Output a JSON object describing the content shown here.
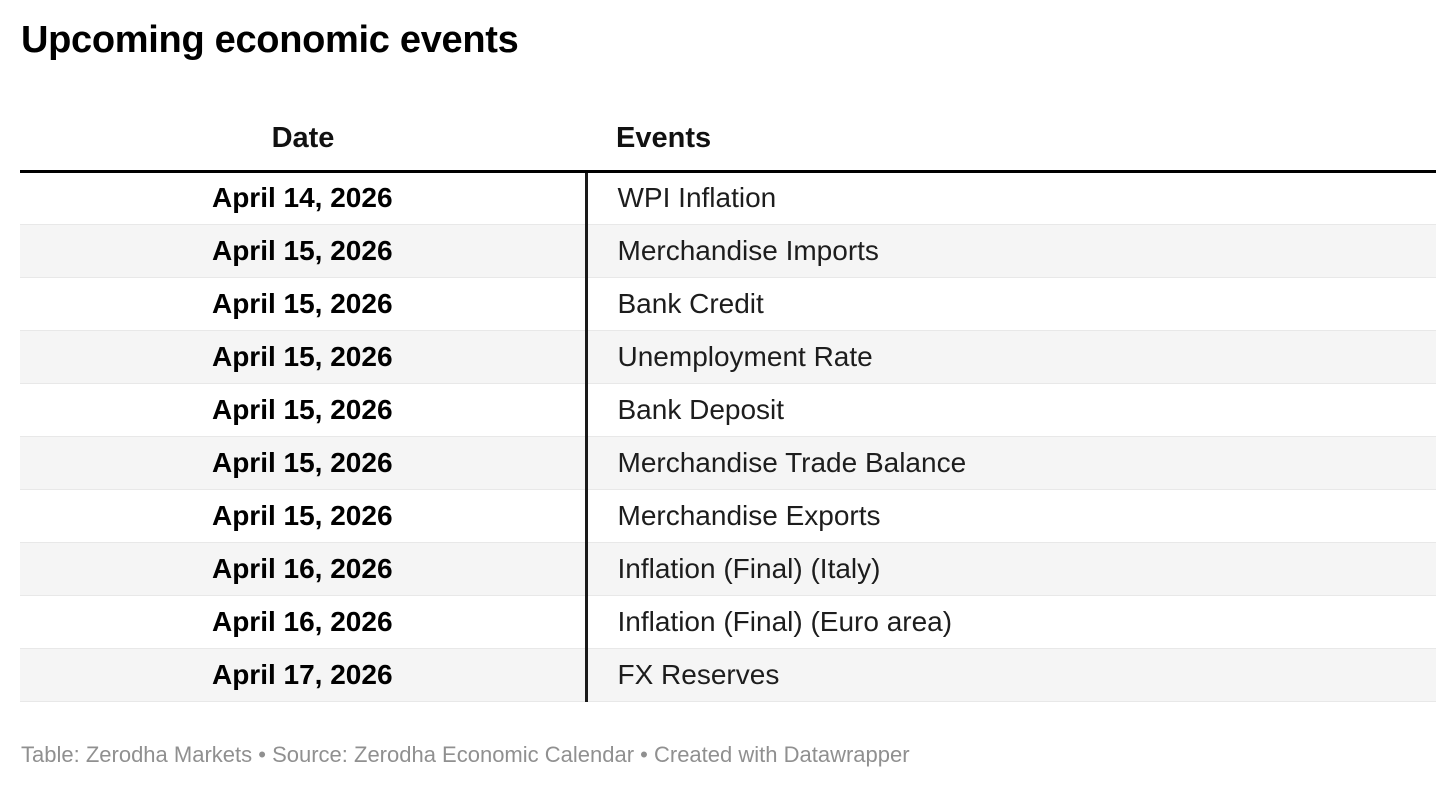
{
  "chart_data": {
    "type": "table",
    "title": "Upcoming economic events",
    "columns": [
      "Date",
      "Events"
    ],
    "rows": [
      {
        "date": "April 14, 2026",
        "event": "WPI Inflation"
      },
      {
        "date": "April 15, 2026",
        "event": "Merchandise Imports"
      },
      {
        "date": "April 15, 2026",
        "event": "Bank Credit"
      },
      {
        "date": "April 15, 2026",
        "event": "Unemployment Rate"
      },
      {
        "date": "April 15, 2026",
        "event": "Bank Deposit"
      },
      {
        "date": "April 15, 2026",
        "event": "Merchandise Trade Balance"
      },
      {
        "date": "April 15, 2026",
        "event": "Merchandise Exports"
      },
      {
        "date": "April 16, 2026",
        "event": "Inflation (Final) (Italy)"
      },
      {
        "date": "April 16, 2026",
        "event": "Inflation (Final) (Euro area)"
      },
      {
        "date": "April 17, 2026",
        "event": "FX Reserves"
      }
    ],
    "layout": {
      "stripe_row_color": "#f5f5f5",
      "row_separator_color": "#e8e8e8",
      "header_rule_color": "#000000",
      "column_divider_color": "#1a1a1a",
      "footer_text_color": "#909090",
      "date_column_align": "center",
      "events_column_align": "left"
    },
    "footer": {
      "full_text": "Table: Zerodha Markets • Source: Zerodha Economic Calendar • Created with Datawrapper",
      "segments": [
        {
          "text": "Table: ",
          "type": "label"
        },
        {
          "text": "Zerodha Markets",
          "type": "link"
        },
        {
          "text": " • ",
          "type": "separator"
        },
        {
          "text": "Source: ",
          "type": "label"
        },
        {
          "text": "Zerodha Economic Calendar",
          "type": "link"
        },
        {
          "text": " • ",
          "type": "separator"
        },
        {
          "text": "Created with ",
          "type": "label"
        },
        {
          "text": "Datawrapper",
          "type": "link"
        }
      ]
    }
  }
}
